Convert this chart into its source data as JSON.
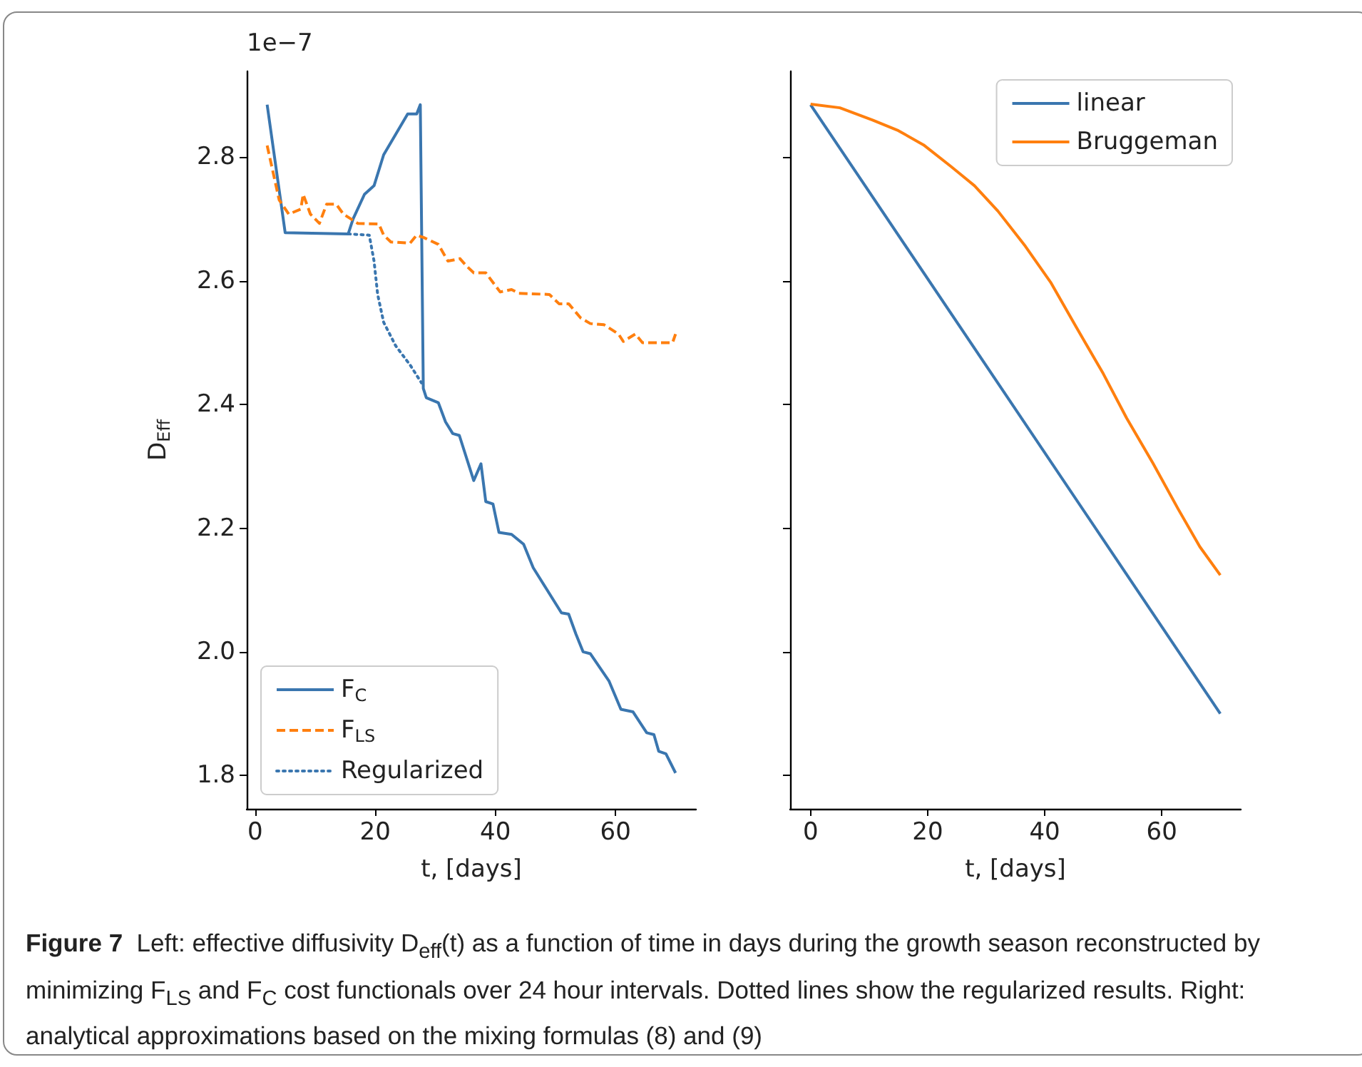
{
  "chart_data": [
    {
      "type": "line",
      "ylabel": "D$_{Eff}$",
      "xlabel": "t, [days]",
      "annotations": [
        "1e−7"
      ],
      "xlim": [
        -1.4,
        73.4
      ],
      "ylim": [
        1.746,
        2.939
      ],
      "xticks": [
        0,
        20,
        40,
        60
      ],
      "yticks": [
        1.8,
        {
          "value": 2,
          "label": "2.0"
        },
        2.2,
        2.4,
        2.6,
        2.8
      ],
      "grid": false,
      "legend": "bottom left",
      "marker": "none",
      "series": [
        {
          "name": "F$_{C}$",
          "color": "#3a76af",
          "line_style": "solid",
          "x": [
            2,
            5,
            15.5,
            16.3,
            18.2,
            19.8,
            21.4,
            25.4,
            26.9,
            27.5,
            28,
            28.5,
            30.5,
            31.7,
            32.9,
            34,
            36.4,
            37.6,
            38.4,
            39.6,
            40.6,
            42.7,
            44.7,
            46.3,
            51,
            52.2,
            53.4,
            54.6,
            55.8,
            58.9,
            60.9,
            62.9,
            65.2,
            66.4,
            67.2,
            68.4,
            70
          ],
          "values": [
            2.885,
            2.678,
            2.676,
            2.7,
            2.74,
            2.754,
            2.804,
            2.87,
            2.87,
            2.885,
            2.426,
            2.411,
            2.403,
            2.372,
            2.353,
            2.35,
            2.277,
            2.304,
            2.243,
            2.239,
            2.193,
            2.19,
            2.174,
            2.136,
            2.063,
            2.061,
            2.029,
            2,
            1.997,
            1.953,
            1.907,
            1.903,
            1.869,
            1.866,
            1.839,
            1.835,
            1.804
          ]
        },
        {
          "name": "F$_{LS}$",
          "color": "#ff7f0e",
          "line_style": "dashed",
          "x": [
            2,
            4,
            5.6,
            7.6,
            8,
            9.2,
            10.7,
            11.9,
            13.5,
            14.7,
            17.1,
            20.6,
            21.4,
            22.6,
            25.8,
            26.9,
            28.1,
            30.5,
            32.1,
            34.1,
            35.2,
            36.4,
            38.4,
            40.8,
            42.7,
            43.9,
            49,
            50.6,
            52.2,
            54.2,
            55.8,
            58.1,
            60.5,
            61.3,
            63.3,
            64.5,
            69.5,
            70
          ],
          "values": [
            2.819,
            2.731,
            2.708,
            2.716,
            2.74,
            2.708,
            2.693,
            2.724,
            2.724,
            2.708,
            2.693,
            2.692,
            2.674,
            2.663,
            2.661,
            2.674,
            2.67,
            2.659,
            2.632,
            2.636,
            2.624,
            2.613,
            2.613,
            2.582,
            2.586,
            2.58,
            2.578,
            2.563,
            2.563,
            2.54,
            2.531,
            2.529,
            2.514,
            2.502,
            2.514,
            2.5,
            2.5,
            2.514
          ]
        },
        {
          "name": "Regularized",
          "color": "#3a76af",
          "line_style": "dotted",
          "x": [
            15.5,
            19,
            19.8,
            20.4,
            21.4,
            23.4,
            25.8,
            27.7
          ],
          "values": [
            2.676,
            2.674,
            2.632,
            2.578,
            2.533,
            2.495,
            2.464,
            2.435
          ]
        }
      ]
    },
    {
      "type": "line",
      "xlabel": "t, [days]",
      "xlim": [
        -3.5,
        73.5
      ],
      "ylim": [
        1.746,
        2.939
      ],
      "xticks": [
        0,
        20,
        40,
        60
      ],
      "yticks": [
        1.8,
        2,
        2.2,
        2.4,
        2.6,
        2.8
      ],
      "tick_labels": "x",
      "grid": false,
      "legend": "top right",
      "marker": "none",
      "annotations": [
        "Figure 7  Left: effective diffusivity D$_{eff}$(t) as a function of time in days during the growth season reconstructed by minimizing F$_{LS}$ and F$_{C}$ cost functionals over 24 hour intervals. Dotted lines show the regularized results. Right: analytical approximations based on the mixing formulas (8) and (9)"
      ],
      "series": [
        {
          "name": "linear",
          "color": "#3a76af",
          "line_style": "solid",
          "x": [
            0,
            70
          ],
          "values": [
            2.885,
            1.9
          ]
        },
        {
          "name": "Bruggeman",
          "color": "#ff7f0e",
          "line_style": "solid",
          "x": [
            0,
            5,
            10.6,
            15,
            19.3,
            24,
            28,
            32,
            36.7,
            41,
            45.4,
            50,
            54,
            58.5,
            62.8,
            66.5,
            70
          ],
          "values": [
            2.886,
            2.88,
            2.86,
            2.843,
            2.82,
            2.785,
            2.754,
            2.713,
            2.656,
            2.598,
            2.525,
            2.45,
            2.378,
            2.305,
            2.231,
            2.17,
            2.124
          ]
        }
      ]
    }
  ]
}
